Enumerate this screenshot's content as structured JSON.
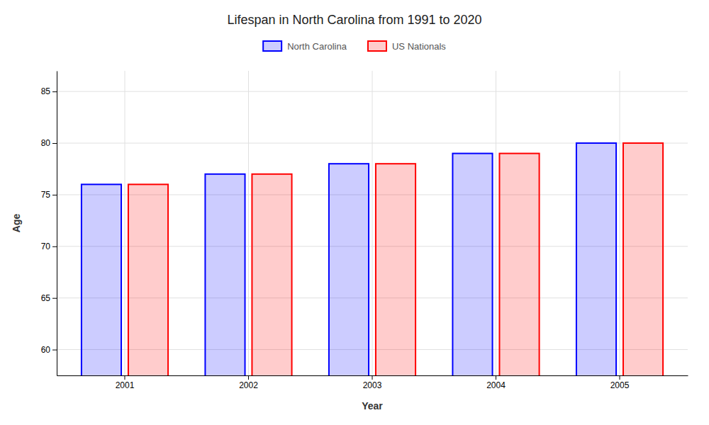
{
  "chart_data": {
    "type": "bar",
    "title": "Lifespan in North Carolina from 1991 to 2020",
    "xlabel": "Year",
    "ylabel": "Age",
    "categories": [
      "2001",
      "2002",
      "2003",
      "2004",
      "2005"
    ],
    "series": [
      {
        "name": "North Carolina",
        "color": "#0000ff",
        "values": [
          76,
          77,
          78,
          79,
          80
        ]
      },
      {
        "name": "US Nationals",
        "color": "#ff0000",
        "values": [
          76,
          77,
          78,
          79,
          80
        ]
      }
    ],
    "ylim": [
      57.5,
      87
    ],
    "yticks": [
      60,
      65,
      70,
      75,
      80,
      85
    ],
    "grid": true,
    "legend": "top"
  }
}
